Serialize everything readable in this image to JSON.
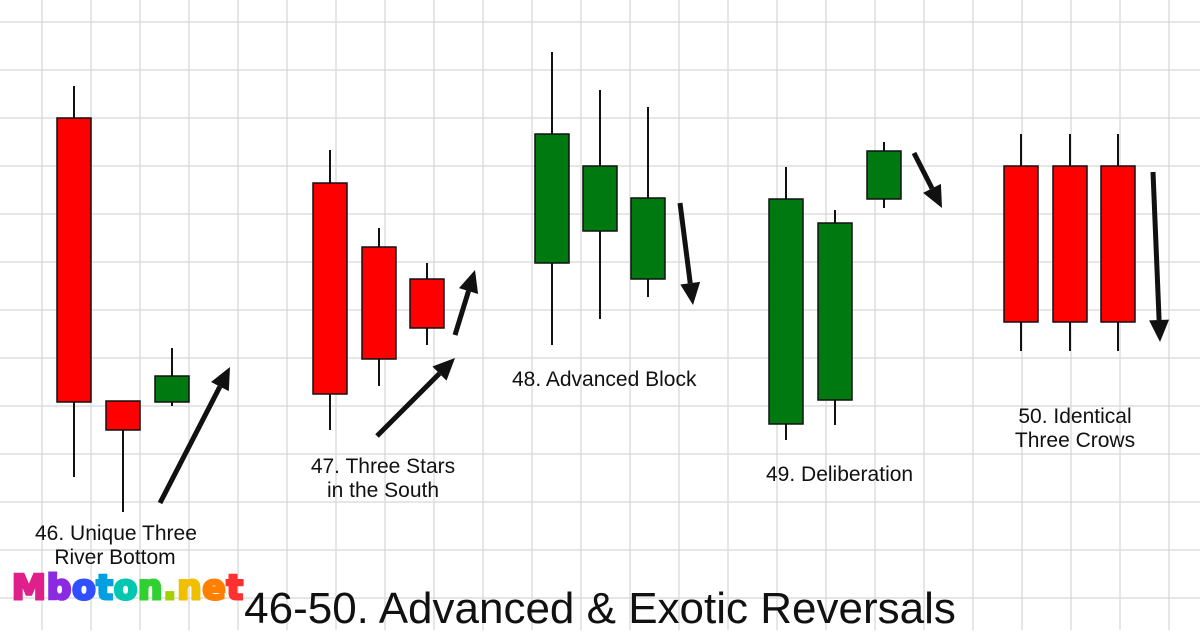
{
  "colors": {
    "bearish": "#ff0000",
    "bullish": "#007a10",
    "outline": "#111111",
    "grid": "#dddddd",
    "arrow": "#111111"
  },
  "patterns": [
    {
      "label_line1": "46. Unique Three",
      "label_line2": "River Bottom"
    },
    {
      "label_line1": "47. Three Stars",
      "label_line2": "in the South"
    },
    {
      "label_line1": "48. Advanced Block"
    },
    {
      "label_line1": "49. Deliberation"
    },
    {
      "label_line1": "50. Identical",
      "label_line2": "Three Crows"
    }
  ],
  "title": "46-50. Advanced & Exotic Reversals",
  "logo": "Mboton.net"
}
